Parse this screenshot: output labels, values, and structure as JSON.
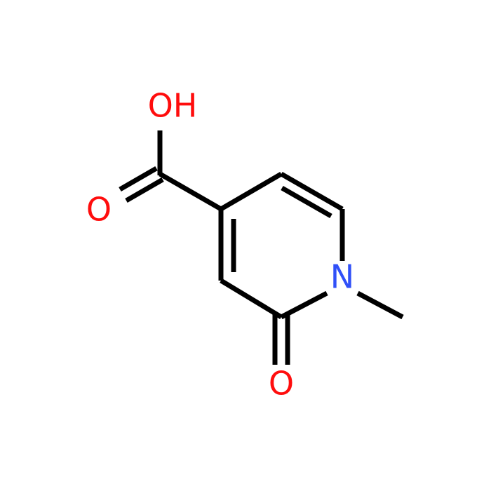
{
  "atoms": [
    {
      "label": "OH"
    },
    {
      "label": "O"
    },
    {
      "label": "N"
    },
    {
      "label": "O"
    }
  ]
}
